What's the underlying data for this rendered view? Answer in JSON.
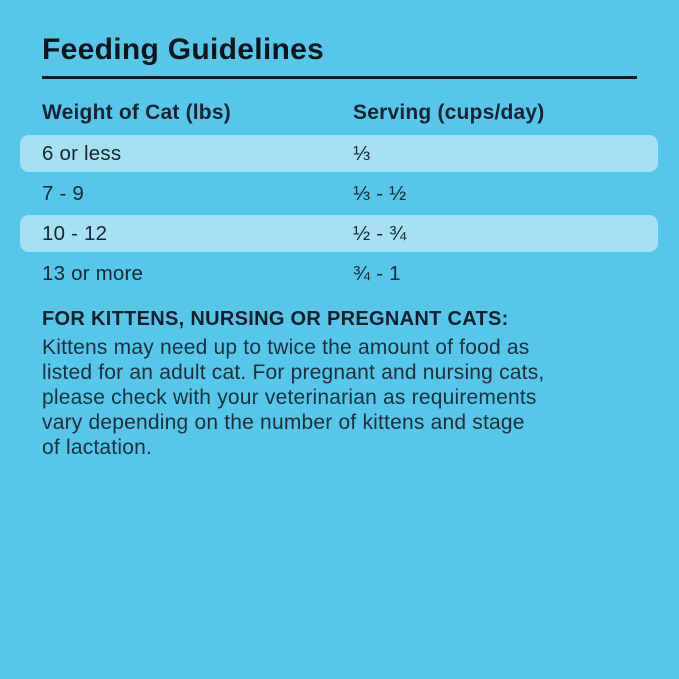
{
  "page": {
    "background_color": "#56c7e8",
    "highlight_band_color": "#a6e0f2",
    "text_color_dark": "#0f1d28",
    "rule_color": "#0e1c28"
  },
  "title": "Feeding Guidelines",
  "table": {
    "columns": [
      {
        "label": "Weight of Cat (lbs)"
      },
      {
        "label": "Serving (cups/day)"
      }
    ],
    "rows": [
      {
        "weight": "6 or less",
        "serving": "⅓",
        "highlighted": true
      },
      {
        "weight": "7 - 9",
        "serving": "⅓ - ½",
        "highlighted": false
      },
      {
        "weight": "10 - 12",
        "serving": "½ - ¾",
        "highlighted": true
      },
      {
        "weight": "13 or more",
        "serving": "¾ - 1",
        "highlighted": false
      }
    ]
  },
  "note": {
    "heading": "FOR KITTENS, NURSING OR PREGNANT CATS:",
    "body": "Kittens may need up to twice the amount of food as\nlisted for an adult cat. For pregnant and nursing cats,\nplease check with your veterinarian as requirements\nvary depending on the number of kittens and stage\nof lactation."
  }
}
